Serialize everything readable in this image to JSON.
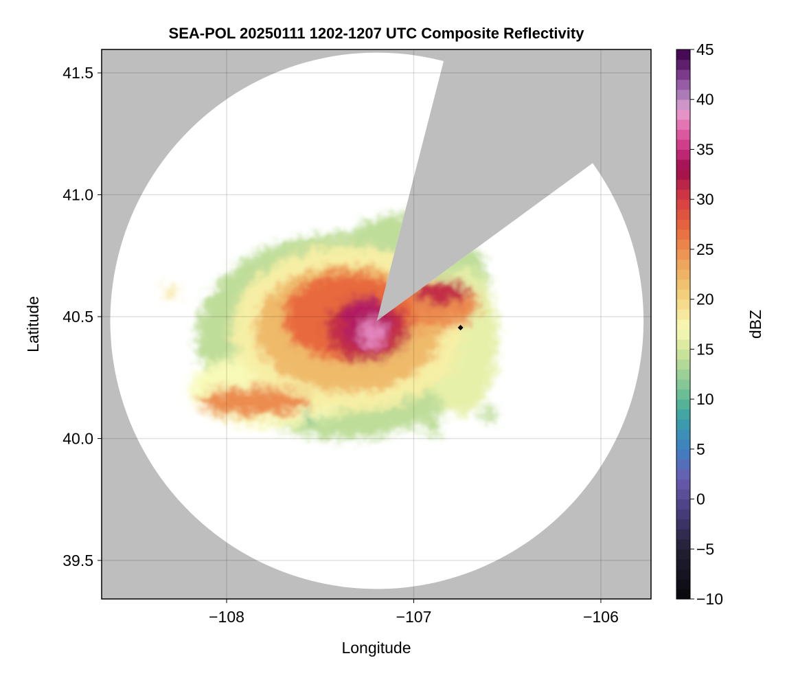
{
  "chart_data": {
    "type": "heatmap",
    "title": "SEA-POL 20250111 1202-1207 UTC Composite Reflectivity",
    "xlabel": "Longitude",
    "ylabel": "Latitude",
    "xlim": [
      -108.668,
      -105.732
    ],
    "ylim": [
      39.342,
      41.596
    ],
    "xticks": [
      -108,
      -107,
      -106
    ],
    "xtick_labels": [
      "−108",
      "−107",
      "−106"
    ],
    "yticks": [
      39.5,
      40.0,
      40.5,
      41.0,
      41.5
    ],
    "ytick_labels": [
      "39.5",
      "40.0",
      "40.5",
      "41.0",
      "41.5"
    ],
    "grid": true,
    "background_color": "#bebebe",
    "radar": {
      "lon": -107.197,
      "lat": 40.483,
      "radius_lon_deg": 1.425,
      "radius_lat_deg": 1.1,
      "blocked_azimuth_deg": [
        14.5,
        54
      ]
    },
    "marker": {
      "lon": -106.75,
      "lat": 40.455,
      "shape": "diamond",
      "color": "#000000"
    },
    "colorbar": {
      "label": "dBZ",
      "range": [
        -10,
        45
      ],
      "ticks": [
        -10,
        -5,
        0,
        5,
        10,
        15,
        20,
        25,
        30,
        35,
        40,
        45
      ],
      "tick_labels": [
        "−10",
        "−5",
        "0",
        "5",
        "10",
        "15",
        "20",
        "25",
        "30",
        "35",
        "40",
        "45"
      ],
      "stops": [
        [
          -10,
          "#08080c"
        ],
        [
          -5,
          "#231f33"
        ],
        [
          -1,
          "#4a3f80"
        ],
        [
          2,
          "#6a5cb0"
        ],
        [
          5,
          "#3f80c2"
        ],
        [
          8,
          "#3aa0a8"
        ],
        [
          10,
          "#5cb894"
        ],
        [
          12,
          "#92cc96"
        ],
        [
          15,
          "#d4e69a"
        ],
        [
          17,
          "#f8fab8"
        ],
        [
          19,
          "#f5e394"
        ],
        [
          21,
          "#f0c874"
        ],
        [
          24,
          "#ee9e58"
        ],
        [
          27,
          "#e8693e"
        ],
        [
          30,
          "#d63c44"
        ],
        [
          32,
          "#b01e48"
        ],
        [
          33,
          "#9c0a4a"
        ],
        [
          35,
          "#c8307e"
        ],
        [
          37,
          "#e066a8"
        ],
        [
          39,
          "#e6a0d0"
        ],
        [
          40,
          "#b48ac0"
        ],
        [
          42,
          "#8c4c9c"
        ],
        [
          43,
          "#6a2a78"
        ],
        [
          45,
          "#3a0048"
        ]
      ]
    },
    "echo_regions": [
      {
        "lon": -107.38,
        "lat": 40.42,
        "rlon": 0.78,
        "rlat": 0.42,
        "dbz": 14
      },
      {
        "lon": -107.05,
        "lat": 40.62,
        "rlon": 0.45,
        "rlat": 0.3,
        "dbz": 14
      },
      {
        "lon": -107.75,
        "lat": 40.2,
        "rlon": 0.45,
        "rlat": 0.15,
        "dbz": 17
      },
      {
        "lon": -106.75,
        "lat": 40.4,
        "rlon": 0.2,
        "rlat": 0.3,
        "dbz": 16
      },
      {
        "lon": -107.35,
        "lat": 40.45,
        "rlon": 0.62,
        "rlat": 0.34,
        "dbz": 18
      },
      {
        "lon": -107.35,
        "lat": 40.45,
        "rlon": 0.5,
        "rlat": 0.26,
        "dbz": 22
      },
      {
        "lon": -107.85,
        "lat": 40.15,
        "rlon": 0.3,
        "rlat": 0.06,
        "dbz": 25
      },
      {
        "lon": -106.9,
        "lat": 40.55,
        "rlon": 0.25,
        "rlat": 0.1,
        "dbz": 25
      },
      {
        "lon": -107.35,
        "lat": 40.5,
        "rlon": 0.35,
        "rlat": 0.18,
        "dbz": 27
      },
      {
        "lon": -107.25,
        "lat": 40.45,
        "rlon": 0.22,
        "rlat": 0.13,
        "dbz": 31
      },
      {
        "lon": -106.85,
        "lat": 40.6,
        "rlon": 0.15,
        "rlat": 0.05,
        "dbz": 31
      },
      {
        "lon": -107.25,
        "lat": 40.47,
        "rlon": 0.13,
        "rlat": 0.1,
        "dbz": 34
      },
      {
        "lon": -107.22,
        "lat": 40.43,
        "rlon": 0.07,
        "rlat": 0.06,
        "dbz": 38
      },
      {
        "lon": -107.55,
        "lat": 40.08,
        "rlon": 0.03,
        "rlat": 0.03,
        "dbz": 11
      },
      {
        "lon": -106.97,
        "lat": 40.9,
        "rlon": 0.04,
        "rlat": 0.03,
        "dbz": 11
      },
      {
        "lon": -106.6,
        "lat": 40.1,
        "rlon": 0.04,
        "rlat": 0.03,
        "dbz": 14
      },
      {
        "lon": -108.3,
        "lat": 40.6,
        "rlon": 0.05,
        "rlat": 0.02,
        "dbz": 19
      },
      {
        "lon": -106.9,
        "lat": 40.05,
        "rlon": 0.05,
        "rlat": 0.04,
        "dbz": 14
      }
    ]
  }
}
